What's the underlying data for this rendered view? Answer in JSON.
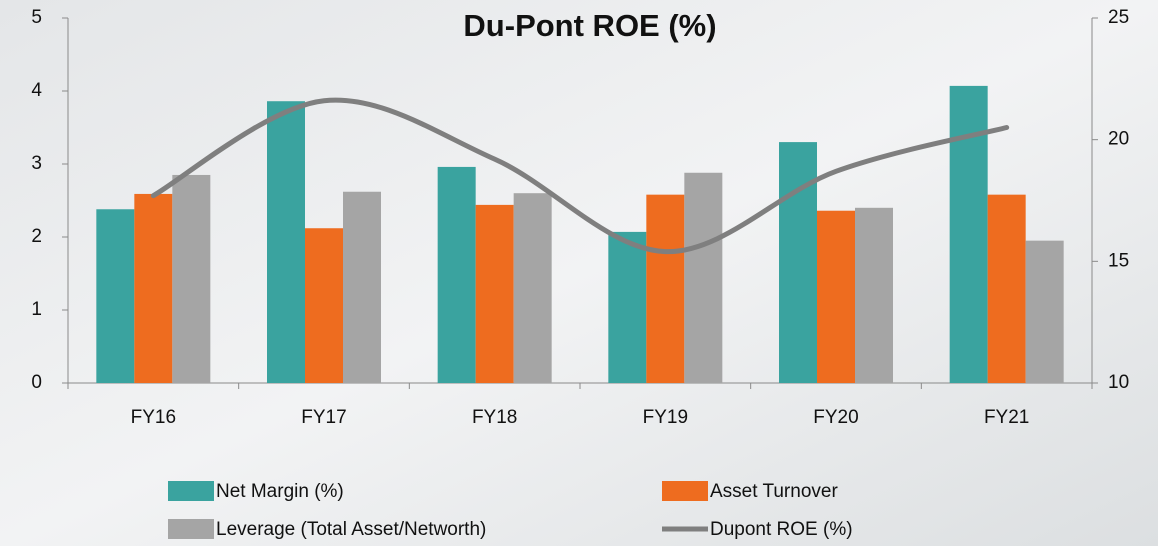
{
  "chart_data": {
    "type": "bar",
    "title": "Du-Pont ROE (%)",
    "categories": [
      "FY16",
      "FY17",
      "FY18",
      "FY19",
      "FY20",
      "FY21"
    ],
    "series": [
      {
        "name": "Net Margin (%)",
        "color": "#3aa39f",
        "values": [
          2.38,
          3.86,
          2.96,
          2.07,
          3.3,
          4.07
        ]
      },
      {
        "name": "Asset Turnover",
        "color": "#ee6c1f",
        "values": [
          2.59,
          2.12,
          2.44,
          2.58,
          2.36,
          2.58
        ]
      },
      {
        "name": "Leverage (Total Asset/Networth)",
        "color": "#a5a5a5",
        "values": [
          2.85,
          2.62,
          2.6,
          2.88,
          2.4,
          1.95
        ]
      },
      {
        "name": "Dupont ROE (%)",
        "color": "#7f7f7f",
        "type": "line",
        "axis": "y2",
        "values": [
          17.7,
          21.6,
          19.2,
          15.4,
          18.7,
          20.5
        ]
      }
    ],
    "ylim": [
      0,
      5
    ],
    "yticks": [
      0,
      1,
      2,
      3,
      4,
      5
    ],
    "y2lim": [
      10,
      25
    ],
    "y2ticks": [
      10,
      15,
      20,
      25
    ]
  }
}
